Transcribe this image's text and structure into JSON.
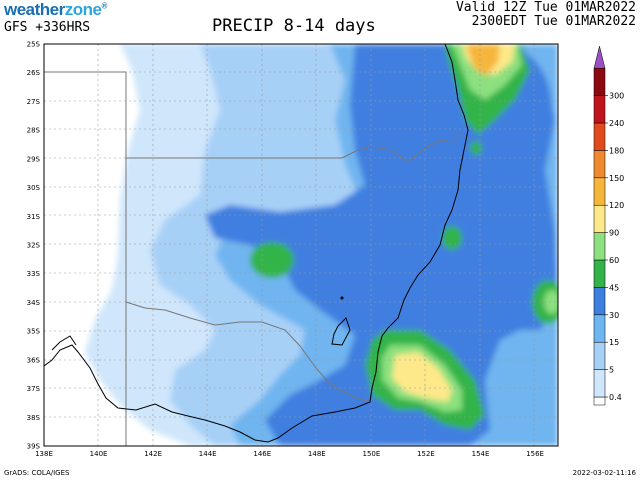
{
  "header": {
    "brand_part1": "weather",
    "brand_part2": "zone",
    "brand_mark": "®",
    "model_run": "GFS +336HRS",
    "title": "PRECIP 8-14 days",
    "valid_utc": "Valid 12Z Tue 01MAR2022",
    "valid_local": "2300EDT Tue 01MAR2022"
  },
  "map": {
    "lat_labels": [
      "25S",
      "26S",
      "27S",
      "28S",
      "29S",
      "30S",
      "31S",
      "32S",
      "33S",
      "34S",
      "35S",
      "36S",
      "37S",
      "38S",
      "39S"
    ],
    "lon_labels": [
      "138E",
      "140E",
      "142E",
      "144E",
      "146E",
      "148E",
      "150E",
      "152E",
      "154E",
      "156E"
    ],
    "colors": {
      "c1": "#cfe6fb",
      "c2": "#a7d0f7",
      "c3": "#6fb5f0",
      "c4": "#3f7fe0",
      "c5": "#33b44a",
      "c6": "#8ce07f",
      "c7": "#fde98a",
      "c8": "#f6b63c",
      "coast": "#000000",
      "border": "#777777",
      "grid": "#999999"
    }
  },
  "legend": {
    "levels": [
      "0.4",
      "5",
      "15",
      "30",
      "45",
      "60",
      "90",
      "120",
      "150",
      "180",
      "240",
      "300"
    ],
    "colors": [
      "#ffffff",
      "#cfe6fb",
      "#a7d0f7",
      "#6fb5f0",
      "#3f7fe0",
      "#33b44a",
      "#8ce07f",
      "#fde98a",
      "#f6b63c",
      "#f08a30",
      "#e04a1e",
      "#c0141c",
      "#8a0a10",
      "#9b4fc4"
    ]
  },
  "footer": {
    "source": "GrADS: COLA/IGES",
    "timestamp": "2022-03-02-11:16"
  }
}
